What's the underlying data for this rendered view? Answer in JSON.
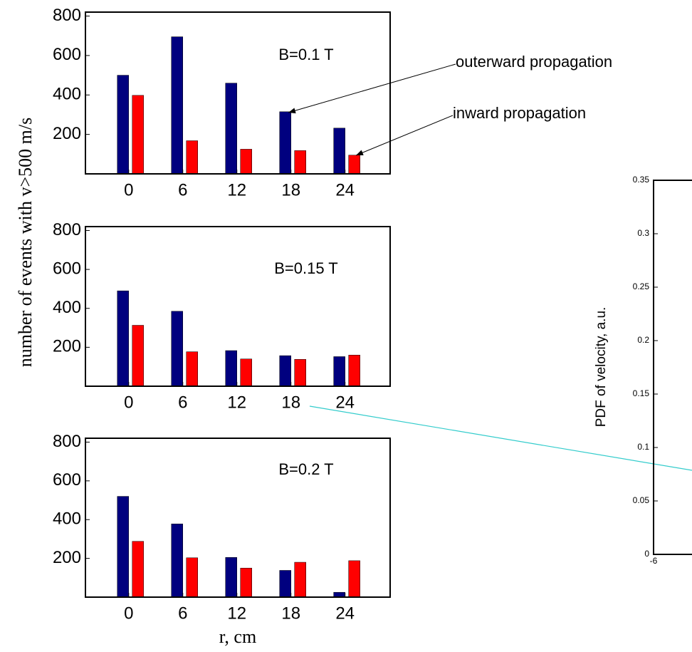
{
  "chart_data": [
    {
      "type": "bar",
      "title": "B=0.1 T",
      "y_label": "number of events with v>500 m/s",
      "annotations": [
        "outerward propagation",
        "inward propagation"
      ],
      "x": [
        0,
        6,
        12,
        18,
        24
      ],
      "xlim": [
        -4.8,
        29
      ],
      "xticks": [
        0,
        6,
        12,
        18,
        24
      ],
      "ylim": [
        0,
        820
      ],
      "yticks": [
        200,
        400,
        600,
        800
      ],
      "series": [
        {
          "color": "#00007f",
          "values": [
            500,
            695,
            460,
            315,
            232
          ]
        },
        {
          "color": "#ff0000",
          "values": [
            398,
            168,
            125,
            118,
            95
          ]
        }
      ]
    },
    {
      "type": "bar",
      "title": "B=0.15 T",
      "x": [
        0,
        6,
        12,
        18,
        24
      ],
      "xlim": [
        -4.8,
        29
      ],
      "xticks": [
        0,
        6,
        12,
        18,
        24
      ],
      "ylim": [
        0,
        820
      ],
      "yticks": [
        200,
        400,
        600,
        800
      ],
      "series": [
        {
          "color": "#00007f",
          "values": [
            490,
            385,
            183,
            157,
            152
          ]
        },
        {
          "color": "#ff0000",
          "values": [
            313,
            177,
            140,
            138,
            160
          ]
        }
      ]
    },
    {
      "type": "bar",
      "title": "B=0.2 T",
      "x_label": "r, cm",
      "x": [
        0,
        6,
        12,
        18,
        24
      ],
      "xlim": [
        -4.8,
        29
      ],
      "xticks": [
        0,
        6,
        12,
        18,
        24
      ],
      "ylim": [
        0,
        820
      ],
      "yticks": [
        200,
        400,
        600,
        800
      ],
      "series": [
        {
          "color": "#00007f",
          "values": [
            520,
            378,
            205,
            138,
            25
          ]
        },
        {
          "color": "#ff0000",
          "values": [
            288,
            203,
            150,
            180,
            188
          ]
        }
      ]
    },
    {
      "type": "line",
      "y_label": "PDF of velocity, a.u.",
      "xlim": [
        -6,
        6
      ],
      "xticks": [
        -6
      ],
      "ylim": [
        0,
        0.35
      ],
      "yticks": [
        0,
        0.05,
        0.1,
        0.15,
        0.2,
        0.25,
        0.3,
        0.35
      ]
    }
  ]
}
